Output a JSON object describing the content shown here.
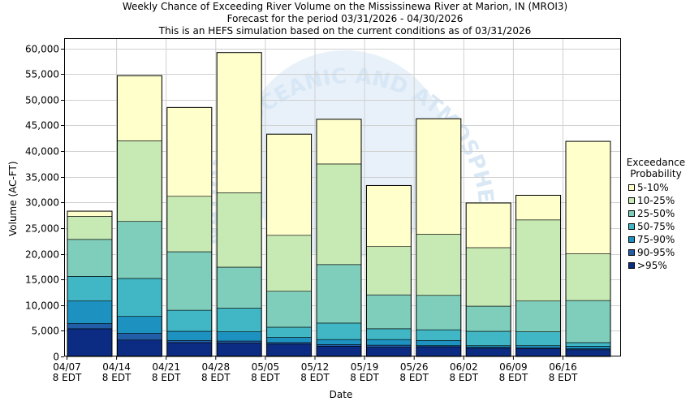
{
  "titles": [
    "Weekly Chance of Exceeding River Volume on the Mississinewa River at Marion, IN (MROI3)",
    "Forecast for the period 03/31/2026 - 04/30/2026",
    "This is an HEFS simulation based on the current conditions as of 03/31/2026"
  ],
  "legend": {
    "title_line1": "Exceedance",
    "title_line2": "Probability",
    "items": [
      {
        "label": "5-10%",
        "color": "#ffffcc"
      },
      {
        "label": "10-25%",
        "color": "#c7e9b4"
      },
      {
        "label": "25-50%",
        "color": "#7fcdbb"
      },
      {
        "label": "50-75%",
        "color": "#41b6c4"
      },
      {
        "label": "75-90%",
        "color": "#1d91c0"
      },
      {
        "label": "90-95%",
        "color": "#225ea8"
      },
      {
        "label": ">95%",
        "color": "#0c2c84"
      }
    ]
  },
  "watermark": {
    "text": "NATIONAL OCEANIC AND ATMOSPHERIC ADMINISTRATION",
    "color": "#d6e6f5"
  },
  "chart_data": {
    "type": "bar",
    "stacked": true,
    "xlabel": "Date",
    "ylabel": "Volume (AC-FT)",
    "ylim": [
      0,
      62000
    ],
    "yticks": [
      0,
      5000,
      10000,
      15000,
      20000,
      25000,
      30000,
      35000,
      40000,
      45000,
      50000,
      55000,
      60000
    ],
    "ytick_labels": [
      "0",
      "5,000",
      "10,000",
      "15,000",
      "20,000",
      "25,000",
      "30,000",
      "35,000",
      "40,000",
      "45,000",
      "50,000",
      "55,000",
      "60,000"
    ],
    "xtick_labels": [
      [
        "04/07",
        "8 EDT"
      ],
      [
        "04/14",
        "8 EDT"
      ],
      [
        "04/21",
        "8 EDT"
      ],
      [
        "04/28",
        "8 EDT"
      ],
      [
        "05/05",
        "8 EDT"
      ],
      [
        "05/12",
        "8 EDT"
      ],
      [
        "05/19",
        "8 EDT"
      ],
      [
        "05/26",
        "8 EDT"
      ],
      [
        "06/02",
        "8 EDT"
      ],
      [
        "06/09",
        "8 EDT"
      ],
      [
        "06/16",
        "8 EDT"
      ]
    ],
    "grid": true,
    "series_order_bottom_to_top": [
      ">95%",
      "90-95%",
      "75-90%",
      "50-75%",
      "25-50%",
      "10-25%",
      "5-10%"
    ],
    "bars": [
      {
        "week": 1,
        "bounds": [
          5400,
          6400,
          10800,
          15600,
          22800,
          27300,
          28300
        ]
      },
      {
        "week": 2,
        "bounds": [
          3200,
          4500,
          7800,
          15200,
          26300,
          42000,
          54700
        ]
      },
      {
        "week": 3,
        "bounds": [
          2700,
          3100,
          4900,
          9000,
          20400,
          31200,
          48500
        ]
      },
      {
        "week": 4,
        "bounds": [
          2600,
          3000,
          4800,
          9400,
          17400,
          31900,
          59200
        ]
      },
      {
        "week": 5,
        "bounds": [
          2400,
          2700,
          3700,
          5700,
          12700,
          23600,
          43300
        ]
      },
      {
        "week": 6,
        "bounds": [
          2000,
          2300,
          3300,
          6500,
          17900,
          37500,
          46200
        ]
      },
      {
        "week": 7,
        "bounds": [
          1800,
          2200,
          3300,
          5400,
          12000,
          21400,
          33300
        ]
      },
      {
        "week": 8,
        "bounds": [
          1900,
          2100,
          3100,
          5200,
          11900,
          23800,
          46300
        ]
      },
      {
        "week": 9,
        "bounds": [
          1600,
          1800,
          2100,
          4900,
          9800,
          21200,
          29900
        ]
      },
      {
        "week": 10,
        "bounds": [
          1500,
          1700,
          2100,
          4800,
          10800,
          26600,
          31400
        ]
      },
      {
        "week": 11,
        "bounds": [
          1300,
          1500,
          2000,
          2700,
          10900,
          20000,
          41900
        ]
      }
    ]
  }
}
